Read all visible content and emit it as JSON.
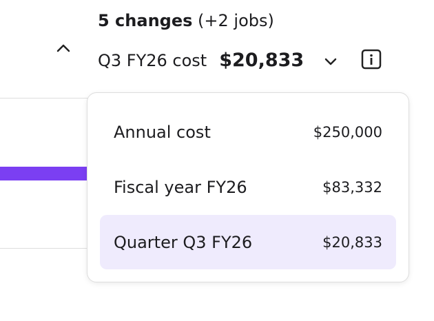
{
  "header": {
    "changes": "5 changes",
    "jobs": "(+2 jobs)",
    "cost_label": "Q3 FY26 cost",
    "cost_value": "$20,833"
  },
  "dropdown": {
    "items": [
      {
        "label": "Annual cost",
        "value": "$250,000"
      },
      {
        "label": "Fiscal year FY26",
        "value": "$83,332"
      },
      {
        "label": "Quarter Q3 FY26",
        "value": "$20,833",
        "selected": true
      }
    ]
  }
}
